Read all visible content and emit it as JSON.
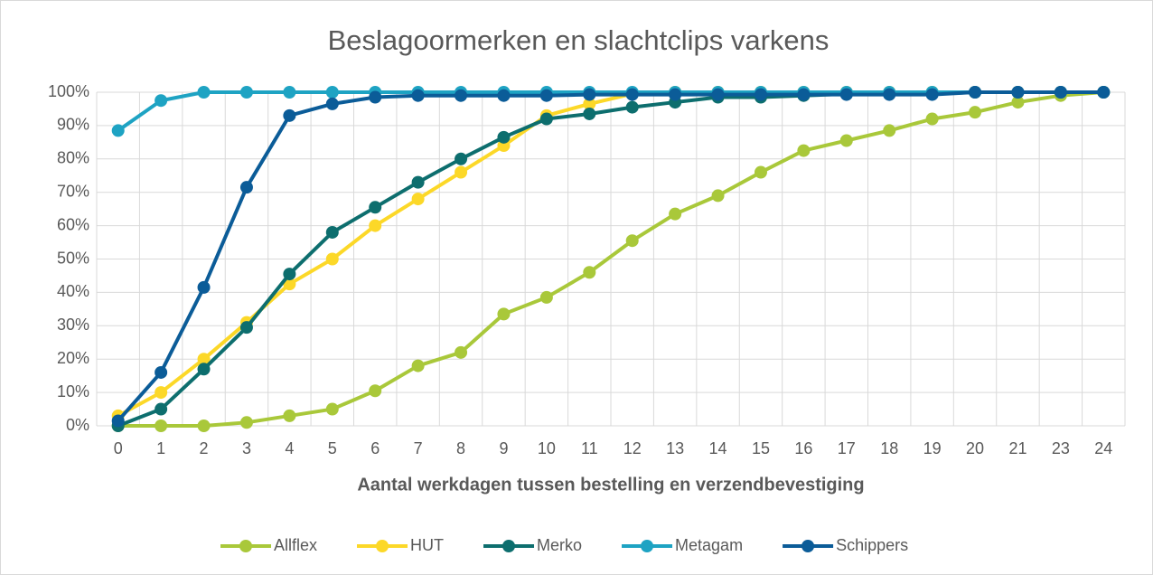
{
  "chart_data": {
    "type": "line",
    "title": "Beslagoormerken en slachtclips varkens",
    "x_label": "Aantal werkdagen tussen bestelling en verzendbevestiging",
    "categories": [
      "0",
      "1",
      "2",
      "3",
      "4",
      "5",
      "6",
      "7",
      "8",
      "9",
      "10",
      "11",
      "12",
      "13",
      "14",
      "15",
      "16",
      "17",
      "18",
      "19",
      "20",
      "21",
      "23",
      "24"
    ],
    "ylim": [
      0,
      100
    ],
    "yticks": [
      {
        "value": 0,
        "label": "0%"
      },
      {
        "value": 10,
        "label": "10%"
      },
      {
        "value": 20,
        "label": "20%"
      },
      {
        "value": 30,
        "label": "30%"
      },
      {
        "value": 40,
        "label": "40%"
      },
      {
        "value": 50,
        "label": "50%"
      },
      {
        "value": 60,
        "label": "60%"
      },
      {
        "value": 70,
        "label": "70%"
      },
      {
        "value": 80,
        "label": "80%"
      },
      {
        "value": 90,
        "label": "90%"
      },
      {
        "value": 100,
        "label": "100%"
      }
    ],
    "grid": true,
    "legend": "bottom",
    "series": [
      {
        "name": "Allflex",
        "color": "#a9c83a",
        "values": [
          0,
          0,
          0,
          1,
          3,
          5,
          10.5,
          18,
          22,
          33.5,
          38.5,
          46,
          55.5,
          63.5,
          69,
          76,
          82.5,
          85.5,
          88.5,
          92,
          94,
          97,
          99,
          100
        ]
      },
      {
        "name": "HUT",
        "color": "#fcd828",
        "values": [
          3,
          10,
          20,
          31,
          42.5,
          50,
          60,
          68,
          76,
          84,
          93,
          96.5,
          99.5,
          100,
          100,
          100,
          100,
          100,
          100,
          100,
          100,
          100,
          100,
          100
        ]
      },
      {
        "name": "Merko",
        "color": "#0d6e6e",
        "values": [
          0,
          5,
          17,
          29.5,
          45.5,
          58,
          65.5,
          73,
          80,
          86.5,
          92,
          93.5,
          95.5,
          97,
          98.5,
          98.5,
          99,
          99.5,
          99.5,
          99.5,
          100,
          100,
          100,
          100
        ]
      },
      {
        "name": "Metagam",
        "color": "#1ea3c3",
        "values": [
          88.5,
          97.5,
          100,
          100,
          100,
          100,
          100,
          100,
          100,
          100,
          100,
          100,
          100,
          100,
          100,
          100,
          100,
          100,
          100,
          100,
          100,
          100,
          100,
          100
        ]
      },
      {
        "name": "Schippers",
        "color": "#0b5c98",
        "values": [
          1.5,
          16,
          41.5,
          71.5,
          93,
          96.5,
          98.5,
          99,
          99,
          99,
          99,
          99.3,
          99.3,
          99.3,
          99.3,
          99.3,
          99.3,
          99.3,
          99.3,
          99.3,
          100,
          100,
          100,
          100
        ]
      }
    ]
  }
}
